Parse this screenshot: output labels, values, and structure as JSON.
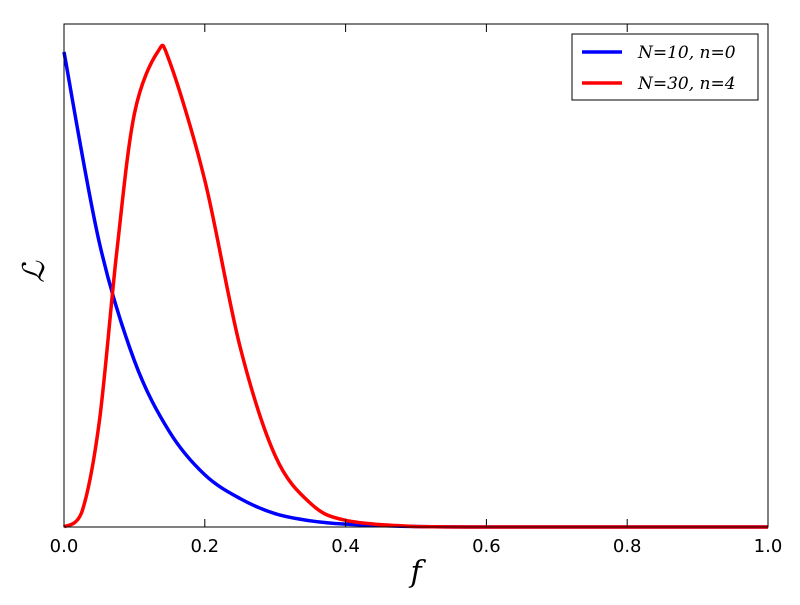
{
  "chart_data": {
    "type": "line",
    "title": "",
    "xlabel": "f",
    "ylabel": "ℒ",
    "xlim": [
      0.0,
      1.0
    ],
    "xticks": [
      0.0,
      0.2,
      0.4,
      0.6,
      0.8,
      1.0
    ],
    "xtick_labels": [
      "0.0",
      "0.2",
      "0.4",
      "0.6",
      "0.8",
      "1.0"
    ],
    "yticks_labeled": false,
    "y_normalized_peak": 1.0,
    "grid": false,
    "legend_position": "top-right",
    "series": [
      {
        "name": "N=10, n=0",
        "color": "#0000ff",
        "x": [
          0.0,
          0.05,
          0.1,
          0.15,
          0.2,
          0.25,
          0.3,
          0.35,
          0.4,
          0.5,
          0.6,
          0.8,
          1.0
        ],
        "y": [
          1.0,
          0.6,
          0.35,
          0.2,
          0.11,
          0.06,
          0.028,
          0.013,
          0.006,
          0.001,
          0.0,
          0.0,
          0.0
        ]
      },
      {
        "name": "N=30, n=4",
        "color": "#ff0000",
        "x": [
          0.0,
          0.025,
          0.05,
          0.075,
          0.1,
          0.133,
          0.15,
          0.2,
          0.25,
          0.3,
          0.35,
          0.4,
          0.5,
          0.6,
          0.8,
          1.0
        ],
        "y": [
          0.0,
          0.03,
          0.22,
          0.58,
          0.87,
          1.0,
          0.98,
          0.73,
          0.38,
          0.15,
          0.05,
          0.014,
          0.001,
          0.0,
          0.0,
          0.0
        ]
      }
    ]
  }
}
